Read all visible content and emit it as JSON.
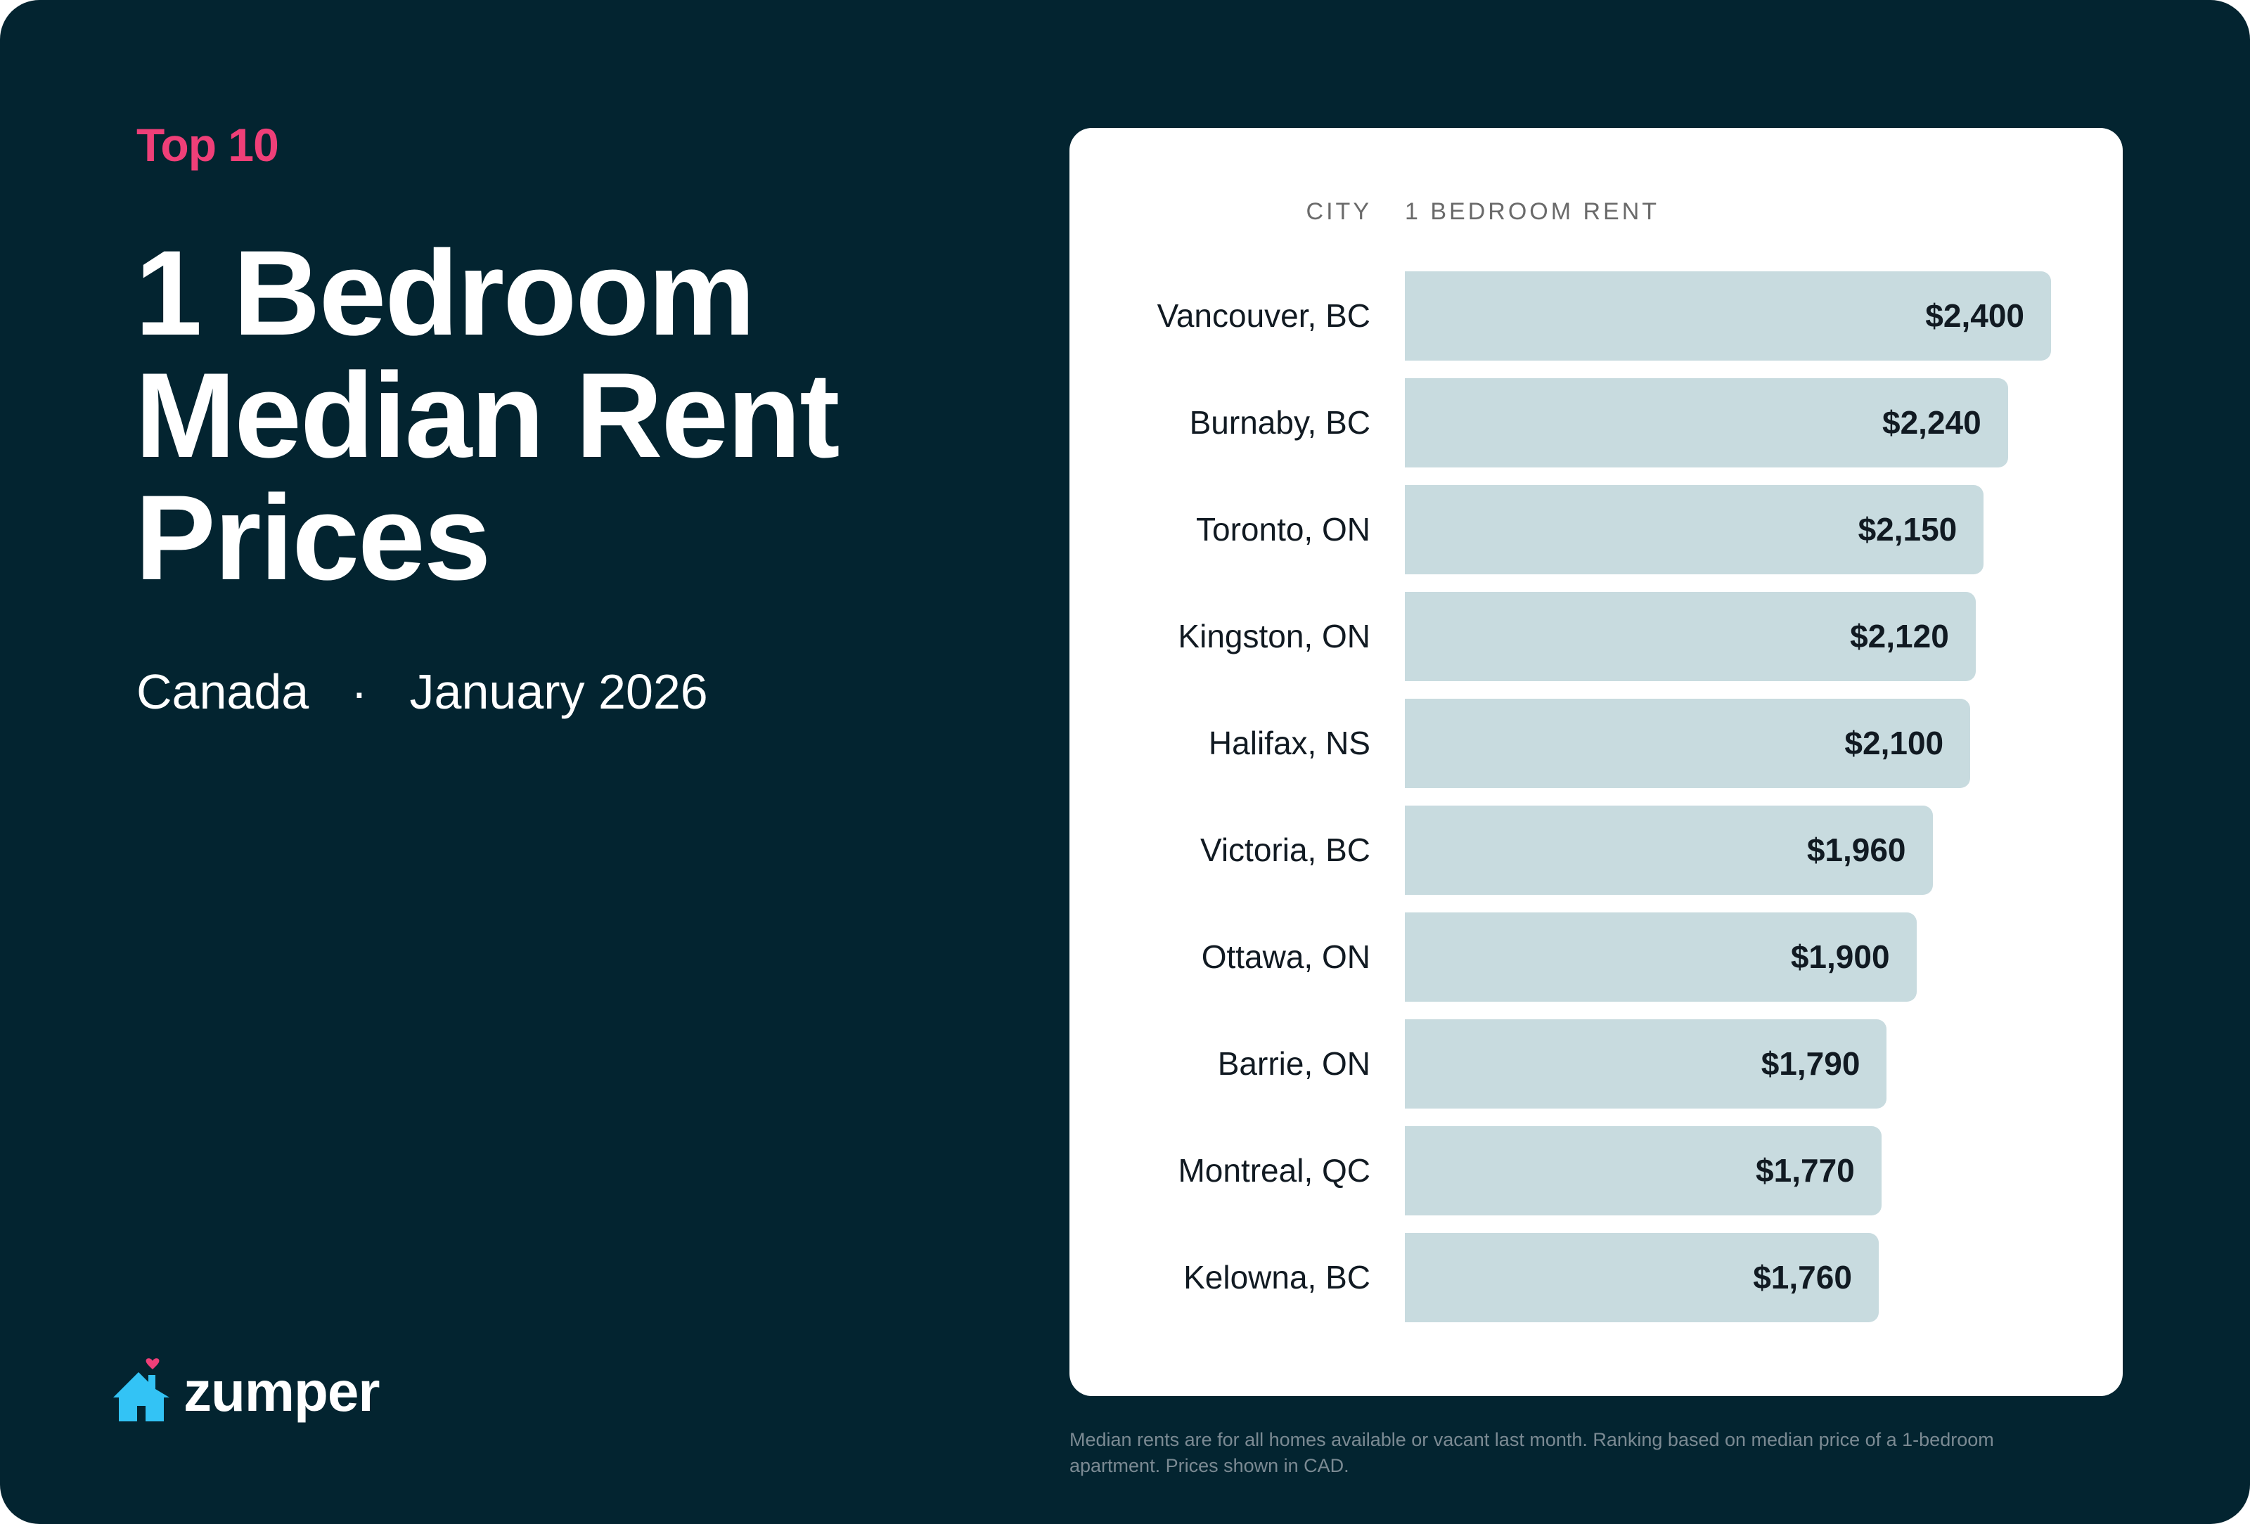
{
  "eyebrow": "Top 10",
  "title_lines": [
    "1 Bedroom",
    "Median Rent",
    "Prices"
  ],
  "subtitle": {
    "region": "Canada",
    "separator": "·",
    "date": "January 2026"
  },
  "logo": {
    "text": "zumper",
    "icon": "house-heart-icon",
    "house_color": "#33c3f5",
    "heart_color": "#ef3f78"
  },
  "colors": {
    "background": "#032430",
    "accent": "#ef3f78",
    "bar": "#c8dbdf",
    "card": "#ffffff"
  },
  "chart_data": {
    "type": "bar",
    "orientation": "horizontal",
    "column_headers": {
      "category": "CITY",
      "value": "1 BEDROOM RENT"
    },
    "categories": [
      "Vancouver, BC",
      "Burnaby, BC",
      "Toronto, ON",
      "Kingston, ON",
      "Halifax, NS",
      "Victoria, BC",
      "Ottawa, ON",
      "Barrie, ON",
      "Montreal, QC",
      "Kelowna, BC"
    ],
    "values": [
      2400,
      2240,
      2150,
      2120,
      2100,
      1960,
      1900,
      1790,
      1770,
      1760
    ],
    "value_labels": [
      "$2,400",
      "$2,240",
      "$2,150",
      "$2,120",
      "$2,100",
      "$1,960",
      "$1,900",
      "$1,790",
      "$1,770",
      "$1,760"
    ],
    "grid": false,
    "legend": "none"
  },
  "footnote": "Median rents are for all homes available or vacant last month. Ranking based on median price of a 1-bedroom apartment. Prices shown in CAD."
}
